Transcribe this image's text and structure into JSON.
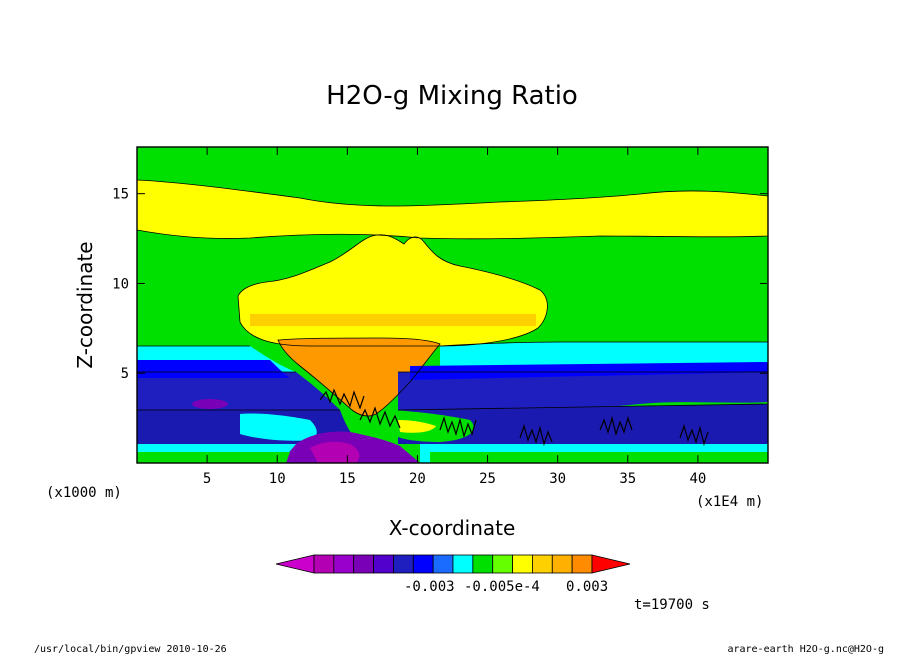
{
  "chart_data": {
    "type": "heatmap",
    "title": "H2O-g Mixing Ratio",
    "xlabel": "X-coordinate",
    "ylabel": "Z-coordinate",
    "x_unit_left": "(x1000 m)",
    "x_unit_right": "(x1E4 m)",
    "xlim": [
      0,
      45
    ],
    "ylim": [
      0,
      17.6
    ],
    "xticks": [
      5,
      10,
      15,
      20,
      25,
      30,
      35,
      40
    ],
    "yticks": [
      5,
      10,
      15
    ],
    "time_label": "t=19700 s",
    "colorbar": {
      "colors": [
        "#cc00cc",
        "#b300b3",
        "#9900cc",
        "#7a00b8",
        "#5200cc",
        "#1f1fbf",
        "#0000ff",
        "#1a6bff",
        "#00ffff",
        "#00e000",
        "#66ff00",
        "#ffff00",
        "#ffd000",
        "#ffb000",
        "#ff8c00",
        "#ff0000"
      ],
      "labels": [
        "-0.003",
        "-0.005e-4",
        "0.003"
      ]
    }
  },
  "footer": {
    "left": "/usr/local/bin/gpview  2010-10-26",
    "right": "arare-earth_H2O-g.nc@H2O-g"
  }
}
